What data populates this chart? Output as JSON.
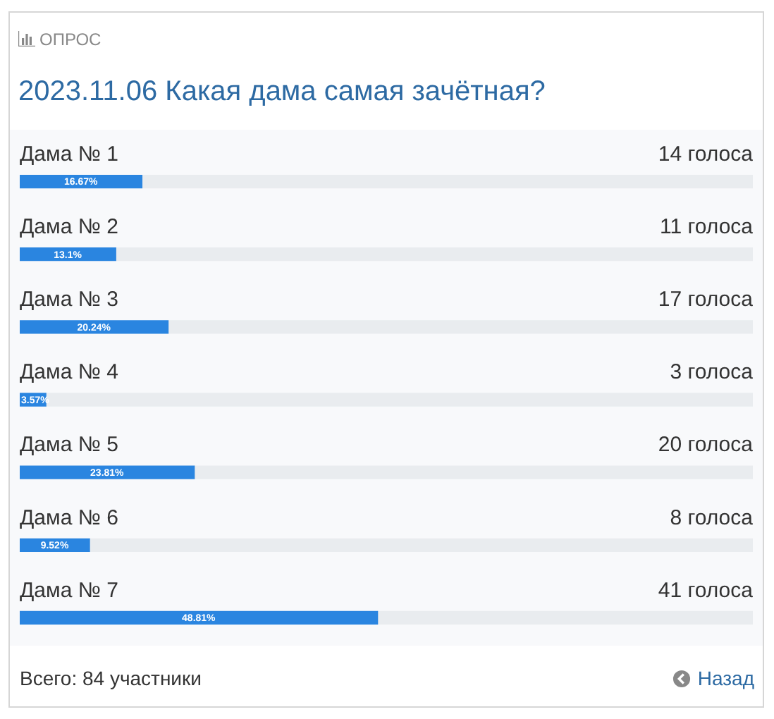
{
  "chart_data": {
    "type": "bar",
    "orientation": "horizontal",
    "subtitle": "ОПРОС",
    "title": "2023.11.06 Какая дама самая зачётная?",
    "categories": [
      "Дама № 1",
      "Дама № 2",
      "Дама № 3",
      "Дама № 4",
      "Дама № 5",
      "Дама № 6",
      "Дама № 7"
    ],
    "stacked": true,
    "series": [
      {
        "color": "#2a85e0",
        "values": [
          16.67,
          13.1,
          20.24,
          3.57,
          23.81,
          9.52,
          48.81
        ],
        "value_labels": [
          "16.67%",
          "13.1%",
          "20.24%",
          "3.57%",
          "23.81%",
          "9.52%",
          "48.81%"
        ]
      },
      {
        "color": "#e9ecef",
        "values": [
          83.33,
          86.9,
          79.76,
          96.43,
          76.19,
          90.48,
          51.19
        ]
      }
    ],
    "xlim": [
      0,
      100
    ],
    "legend": false,
    "annotations": [
      "14 голоса",
      "11 голоса",
      "17 голоса",
      "3 голоса",
      "20 голоса",
      "8 голоса",
      "41 голоса",
      "Всего: 84 участники",
      "Назад"
    ]
  }
}
